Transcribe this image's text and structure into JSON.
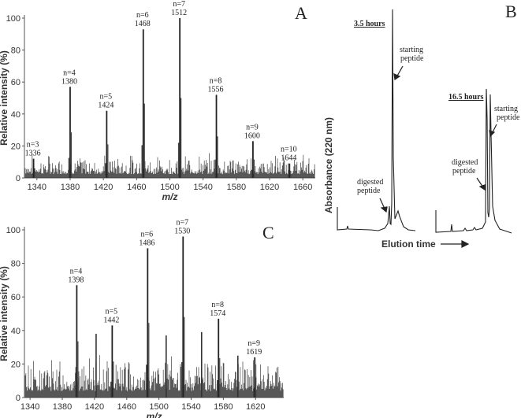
{
  "chart_data": [
    {
      "panel": "A",
      "type": "bar",
      "title": "",
      "xlabel": "m/z",
      "ylabel": "Relative intensity (%)",
      "xlim": [
        1325,
        1675
      ],
      "ylim": [
        0,
        100
      ],
      "x_ticks": [
        1340,
        1380,
        1420,
        1460,
        1500,
        1540,
        1580,
        1620,
        1660
      ],
      "y_ticks": [
        0,
        20,
        40,
        60,
        80,
        100
      ],
      "noise_level": 8,
      "peaks": [
        {
          "n": "n=3",
          "mz": 1336,
          "label": "1336",
          "intensity": 12
        },
        {
          "n": "n=4",
          "mz": 1380,
          "label": "1380",
          "intensity": 57
        },
        {
          "n": "n=5",
          "mz": 1424,
          "label": "1424",
          "intensity": 42
        },
        {
          "n": "n=6",
          "mz": 1468,
          "label": "1468",
          "intensity": 93
        },
        {
          "n": "n=7",
          "mz": 1512,
          "label": "1512",
          "intensity": 100
        },
        {
          "n": "n=8",
          "mz": 1556,
          "label": "1556",
          "intensity": 52
        },
        {
          "n": "n=9",
          "mz": 1600,
          "label": "1600",
          "intensity": 23
        },
        {
          "n": "n=10",
          "mz": 1644,
          "label": "1644",
          "intensity": 9
        }
      ]
    },
    {
      "panel": "B",
      "type": "line",
      "title": "",
      "xlabel": "Elution time",
      "ylabel": "Absorbance  (220 nm)",
      "traces": [
        {
          "name": "3.5 hours",
          "annotations": [
            "digested peptide",
            "starting peptide"
          ],
          "digested_rel_height": 0.1,
          "starting_rel_height": 1.0
        },
        {
          "name": "16.5 hours",
          "annotations": [
            "digested peptide",
            "starting peptide"
          ],
          "digested_rel_height": 0.68,
          "starting_rel_height": 0.66
        }
      ]
    },
    {
      "panel": "C",
      "type": "bar",
      "title": "",
      "xlabel": "m/z",
      "ylabel": "Relative intensity (%)",
      "xlim": [
        1333,
        1655
      ],
      "ylim": [
        0,
        100
      ],
      "x_ticks": [
        1340,
        1380,
        1420,
        1460,
        1500,
        1540,
        1580,
        1620
      ],
      "y_ticks": [
        0,
        20,
        40,
        60,
        80,
        100
      ],
      "noise_level": 13,
      "peaks": [
        {
          "n": "n=4",
          "mz": 1398,
          "label": "1398",
          "intensity": 67
        },
        {
          "n": "n=5",
          "mz": 1442,
          "label": "1442",
          "intensity": 43
        },
        {
          "n": "n=6",
          "mz": 1486,
          "label": "1486",
          "intensity": 89
        },
        {
          "n": "n=7",
          "mz": 1530,
          "label": "1530",
          "intensity": 96
        },
        {
          "n": "n=8",
          "mz": 1574,
          "label": "1574",
          "intensity": 47
        },
        {
          "n": "n=9",
          "mz": 1619,
          "label": "1619",
          "intensity": 24
        }
      ],
      "other_peaks": [
        {
          "mz": 1422,
          "intensity": 38
        },
        {
          "mz": 1509,
          "intensity": 37
        },
        {
          "mz": 1553,
          "intensity": 39
        },
        {
          "mz": 1598,
          "intensity": 25
        }
      ]
    }
  ],
  "labels": {
    "panel_a": "A",
    "panel_b": "B",
    "panel_c": "C",
    "hours_1": "3.5 hours",
    "hours_2": "16.5 hours",
    "starting": "starting",
    "peptide": "peptide",
    "digested": "digested",
    "b_ylabel": "Absorbance  (220 nm)",
    "b_xlabel": "Elution time",
    "mz": "m/z",
    "rel_int": "Relative intensity (%)"
  }
}
